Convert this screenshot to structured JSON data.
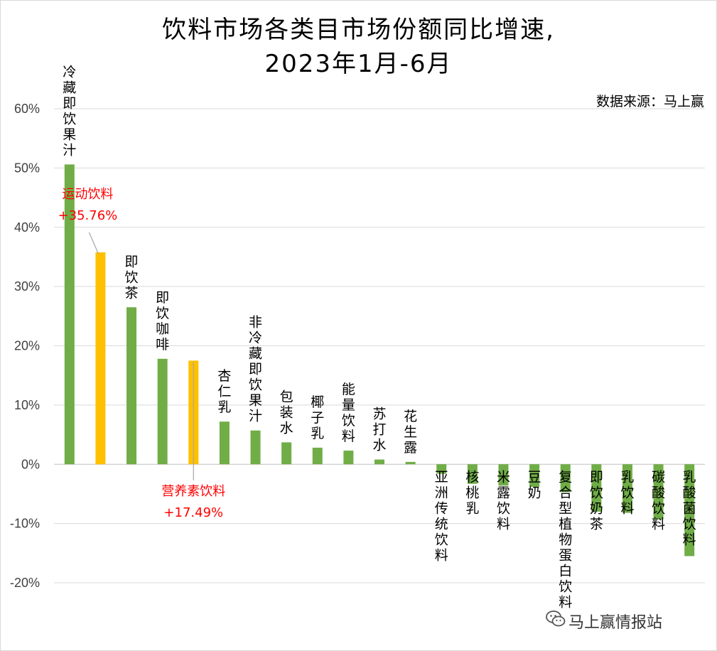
{
  "title_line1": "饮料市场各类目市场份额同比增速,",
  "title_line2": "2023年1月-6月",
  "source": "数据来源：马上赢",
  "watermark": "马上赢情报站",
  "colors": {
    "default": "#70ad47",
    "highlight": "#ffc000",
    "grid": "#d9d9d9",
    "annotation": "#ff0000"
  },
  "chart_data": {
    "type": "bar",
    "title": "饮料市场各类目市场份额同比增速, 2023年1月-6月",
    "ylim": [
      -0.2,
      0.6
    ],
    "yticks": [
      0.6,
      0.5,
      0.4,
      0.3,
      0.2,
      0.1,
      0.0,
      -0.1,
      -0.2
    ],
    "ytick_labels": [
      "60%",
      "50%",
      "40%",
      "30%",
      "20%",
      "10%",
      "0%",
      "-10%",
      "-20%"
    ],
    "grid": true,
    "categories": [
      "冷藏即饮果汁",
      "运动饮料",
      "即饮茶",
      "即饮咖啡",
      "营养素饮料",
      "杏仁乳",
      "非冷藏即饮果汁",
      "包装水",
      "椰子乳",
      "能量饮料",
      "苏打水",
      "花生露",
      "亚洲传统饮料",
      "核桃乳",
      "米露饮料",
      "豆奶",
      "复合型植物蛋白饮料",
      "即饮奶茶",
      "乳饮料",
      "碳酸饮料",
      "乳酸菌饮料"
    ],
    "values": [
      0.506,
      0.3576,
      0.265,
      0.178,
      0.1749,
      0.072,
      0.057,
      0.037,
      0.028,
      0.023,
      0.008,
      0.004,
      -0.016,
      -0.033,
      -0.036,
      -0.038,
      -0.047,
      -0.08,
      -0.082,
      -0.093,
      -0.155
    ],
    "highlighted": [
      "运动饮料",
      "营养素饮料"
    ],
    "annotations": [
      {
        "category": "运动饮料",
        "name": "运动饮料",
        "value_label": "+35.76%"
      },
      {
        "category": "营养素饮料",
        "name": "营养素饮料",
        "value_label": "+17.49%"
      }
    ]
  }
}
